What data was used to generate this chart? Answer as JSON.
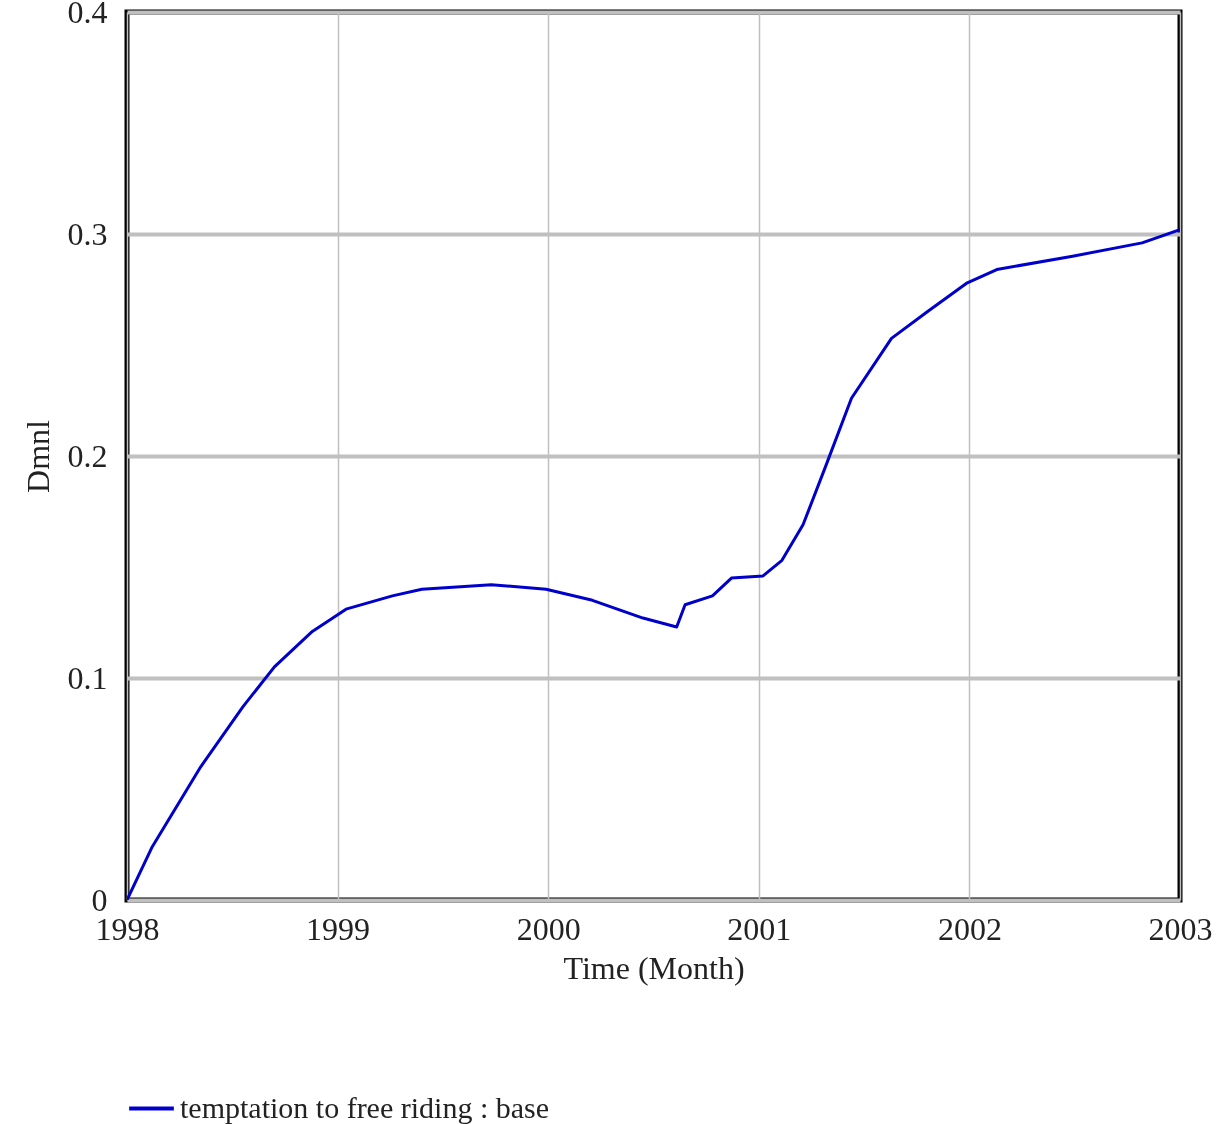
{
  "chart_data": {
    "type": "line",
    "xlabel": "Time (Month)",
    "ylabel": "Dmnl",
    "x": [
      1998,
      1998.12,
      1998.35,
      1998.55,
      1998.7,
      1998.88,
      1999.04,
      1999.26,
      1999.4,
      1999.73,
      1999.99,
      2000.21,
      2000.45,
      2000.61,
      2000.65,
      2000.78,
      2000.87,
      2001.02,
      2001.11,
      2001.21,
      2001.32,
      2001.44,
      2001.63,
      2001.8,
      2001.99,
      2002.13,
      2002.49,
      2002.82,
      2003
    ],
    "series": [
      {
        "name": "temptation to free riding : base",
        "color": "#0000cc",
        "values": [
          0,
          0.024,
          0.06,
          0.087,
          0.105,
          0.121,
          0.131,
          0.137,
          0.14,
          0.142,
          0.14,
          0.135,
          0.127,
          0.123,
          0.133,
          0.137,
          0.145,
          0.146,
          0.153,
          0.169,
          0.196,
          0.226,
          0.253,
          0.265,
          0.278,
          0.284,
          0.29,
          0.296,
          0.302
        ]
      }
    ],
    "xlim": [
      1998,
      2003
    ],
    "ylim": [
      0,
      0.4
    ],
    "xticks": [
      1998,
      1999,
      2000,
      2001,
      2002,
      2003
    ],
    "yticks": [
      0,
      0.1,
      0.2,
      0.3,
      0.4
    ],
    "grid": true,
    "legend": "bottom"
  }
}
